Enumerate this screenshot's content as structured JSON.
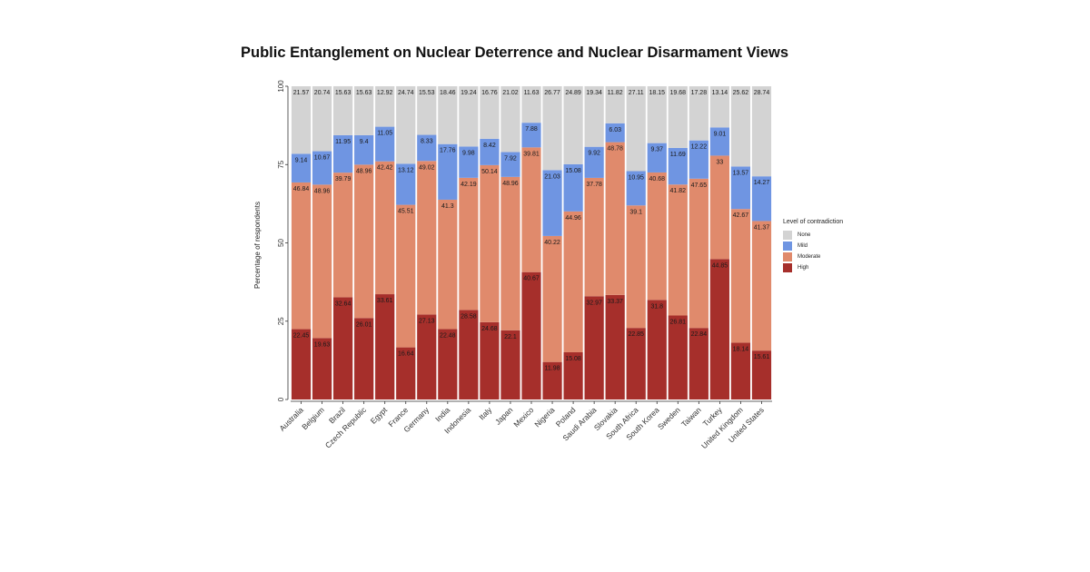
{
  "title": "Public Entanglement on Nuclear Deterrence and Nuclear Disarmament Views",
  "chart_data": {
    "type": "bar",
    "stacked": true,
    "ylabel": "Percentage of respondents",
    "xlabel": "",
    "ylim": [
      0,
      100
    ],
    "yticks": [
      "0",
      "25",
      "50",
      "75",
      "100"
    ],
    "legend": {
      "title": "Level of contradiction",
      "position": "right"
    },
    "categories": [
      "Australia",
      "Belgium",
      "Brazil",
      "Czech Republic",
      "Egypt",
      "France",
      "Germany",
      "India",
      "Indonesia",
      "Italy",
      "Japan",
      "Mexico",
      "Nigeria",
      "Poland",
      "Saudi Arabia",
      "Slovakia",
      "South Africa",
      "South Korea",
      "Sweden",
      "Taiwan",
      "Turkey",
      "United Kingdom",
      "United States"
    ],
    "series": [
      {
        "name": "High",
        "color": "#a62f2b",
        "label_color": "#1a1a1a",
        "values": [
          22.45,
          19.63,
          32.64,
          26.01,
          33.61,
          16.64,
          27.13,
          22.48,
          28.58,
          24.68,
          22.1,
          40.67,
          11.98,
          15.08,
          32.97,
          33.37,
          22.85,
          31.8,
          26.81,
          22.84,
          44.85,
          18.14,
          15.61
        ]
      },
      {
        "name": "Moderate",
        "color": "#e08a6c",
        "label_color": "#1a1a1a",
        "values": [
          46.84,
          48.96,
          39.79,
          48.96,
          42.42,
          45.51,
          49.02,
          41.3,
          42.19,
          50.14,
          48.96,
          39.81,
          40.22,
          44.96,
          37.78,
          48.78,
          39.1,
          40.68,
          41.82,
          47.65,
          33,
          42.67,
          41.37
        ]
      },
      {
        "name": "Mild",
        "color": "#6f95e2",
        "label_color": "#1a1a1a",
        "values": [
          9.14,
          10.67,
          11.95,
          9.4,
          11.05,
          13.12,
          8.33,
          17.76,
          9.98,
          8.42,
          7.92,
          7.88,
          21.03,
          15.08,
          9.92,
          6.03,
          10.95,
          9.37,
          11.69,
          12.22,
          9.01,
          13.57,
          14.27
        ]
      },
      {
        "name": "None",
        "color": "#d3d3d3",
        "label_color": "#1a1a1a",
        "values": [
          21.57,
          20.74,
          15.63,
          15.63,
          12.92,
          24.74,
          15.53,
          18.46,
          19.24,
          16.76,
          21.02,
          11.63,
          26.77,
          24.89,
          19.34,
          11.82,
          27.11,
          18.15,
          19.68,
          17.28,
          13.14,
          25.62,
          28.74
        ]
      }
    ],
    "legend_order": [
      "None",
      "Mild",
      "Moderate",
      "High"
    ]
  }
}
